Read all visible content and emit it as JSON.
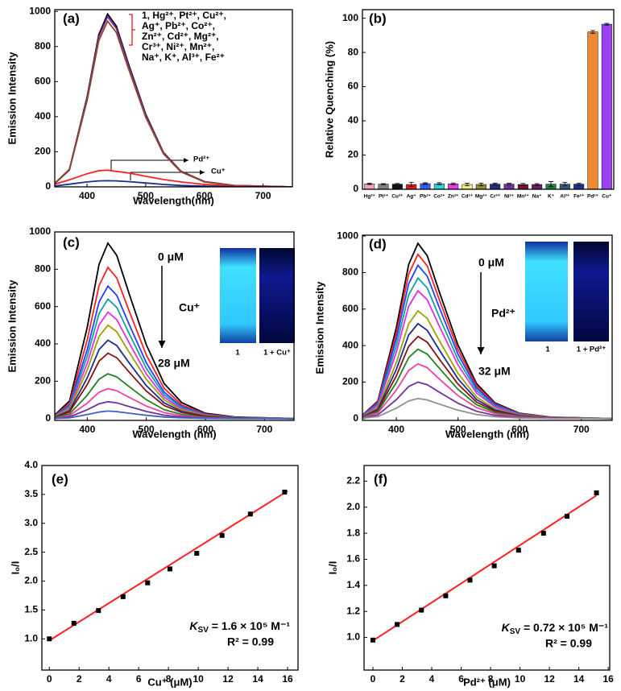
{
  "chart_data": [
    {
      "type": "line",
      "panel": "(a)",
      "xlabel": "Wavelength(nm)",
      "ylabel": "Emission Intensity",
      "legend_lines": [
        "1, Hg²⁺, Pt²⁺, Cu²⁺,",
        "Ag⁺, Pb²⁺, Co²⁺,",
        "Zn²⁺, Cd²⁺, Mg²⁺,",
        "Cr³⁺, Ni²⁺, Mn²⁺,",
        "Na⁺, K⁺, Al³⁺, Fe²⁺"
      ],
      "x": [
        345,
        370,
        400,
        420,
        435,
        450,
        470,
        500,
        530,
        560,
        600,
        650,
        750
      ],
      "xlim": [
        345,
        750
      ],
      "xticks": [
        400,
        500,
        600,
        700
      ],
      "ylim": [
        0,
        1010
      ],
      "yticks": [
        0,
        200,
        400,
        600,
        800,
        1000
      ],
      "series": [
        {
          "color": "#000000",
          "values": [
            20,
            99,
            512,
            867,
            985,
            916,
            709,
            414,
            197,
            89,
            30,
            8,
            0
          ]
        },
        {
          "color": "#7b2a9e",
          "values": [
            19,
            97,
            504,
            854,
            970,
            902,
            698,
            407,
            194,
            87,
            29,
            8,
            0
          ]
        },
        {
          "color": "#8b4a2a",
          "values": [
            19,
            95,
            491,
            832,
            945,
            879,
            680,
            397,
            189,
            85,
            28,
            8,
            0
          ]
        },
        {
          "name": "Pd²⁺",
          "color": "#ff2020",
          "values": [
            15,
            40,
            75,
            92,
            95,
            88,
            80,
            60,
            42,
            28,
            14,
            5,
            0
          ]
        },
        {
          "name": "Cu⁺",
          "color": "#1a2f8f",
          "values": [
            5,
            15,
            28,
            34,
            35,
            34,
            30,
            22,
            14,
            8,
            4,
            1,
            0
          ]
        }
      ]
    },
    {
      "type": "bar",
      "panel": "(b)",
      "ylabel": "Relative Quenching (%)",
      "categories": [
        "Hg²⁺",
        "Pt²⁺",
        "Cu²⁺",
        "Ag⁺",
        "Pb²⁺",
        "Co²⁺",
        "Zn²⁺",
        "Cd²⁺",
        "Mg²⁺",
        "Cr³⁺",
        "Ni²⁺",
        "Mn²⁺",
        "Na⁺",
        "K⁺",
        "Al³⁺",
        "Fe²⁺",
        "Pd²⁺",
        "Cu⁺"
      ],
      "values": [
        3.2,
        3.0,
        3.0,
        2.8,
        3.3,
        3.2,
        3.2,
        2.8,
        2.8,
        3.0,
        3.0,
        2.8,
        2.8,
        3.0,
        3.0,
        3.0,
        92,
        96.5
      ],
      "errors": [
        0.4,
        0.3,
        0.4,
        1.2,
        0.5,
        0.6,
        0.5,
        0.8,
        0.8,
        0.5,
        0.5,
        0.6,
        0.5,
        1.5,
        1.0,
        0.6,
        0.8,
        0.5
      ],
      "colors": [
        "#f4a0c0",
        "#808080",
        "#111111",
        "#e02020",
        "#3060ff",
        "#30d0e0",
        "#e040e0",
        "#f0f080",
        "#909030",
        "#203080",
        "#7030a0",
        "#801030",
        "#6a2060",
        "#208040",
        "#306080",
        "#203090",
        "#f08a30",
        "#9b40f0"
      ],
      "ylim": [
        0,
        105
      ],
      "yticks": [
        0,
        20,
        40,
        60,
        80,
        100
      ]
    },
    {
      "type": "line",
      "panel": "(c)",
      "xlabel": "Wavelength (nm)",
      "ylabel": "Emission Intensity",
      "start_label": "0 μM",
      "analyte": "Cu⁺",
      "end_label": "28 μM",
      "inset_labels": [
        "1",
        "1 + Cu⁺"
      ],
      "x": [
        345,
        370,
        400,
        420,
        435,
        450,
        470,
        500,
        530,
        560,
        600,
        650,
        750
      ],
      "xlim": [
        345,
        750
      ],
      "xticks": [
        400,
        500,
        600,
        700
      ],
      "ylim": [
        -10,
        1000
      ],
      "yticks": [
        0,
        200,
        400,
        600,
        800,
        1000
      ],
      "series": [
        {
          "color": "#000000",
          "values": [
            19,
            94,
            489,
            827,
            940,
            874,
            677,
            395,
            188,
            85,
            28,
            8,
            0
          ]
        },
        {
          "color": "#ff2020",
          "values": [
            16,
            81,
            421,
            713,
            810,
            753,
            583,
            340,
            162,
            73,
            24,
            6,
            0
          ]
        },
        {
          "color": "#2040ff",
          "values": [
            14,
            71,
            369,
            625,
            710,
            660,
            511,
            298,
            142,
            64,
            21,
            6,
            0
          ]
        },
        {
          "color": "#10a0a0",
          "values": [
            13,
            64,
            333,
            563,
            640,
            595,
            461,
            269,
            128,
            58,
            19,
            5,
            0
          ]
        },
        {
          "color": "#e030e0",
          "values": [
            11,
            57,
            296,
            502,
            570,
            530,
            410,
            239,
            114,
            51,
            17,
            5,
            0
          ]
        },
        {
          "color": "#a0a000",
          "values": [
            10,
            50,
            260,
            440,
            500,
            465,
            360,
            210,
            100,
            45,
            15,
            4,
            0
          ]
        },
        {
          "color": "#1a2f8f",
          "values": [
            8,
            42,
            218,
            370,
            420,
            391,
            302,
            176,
            84,
            38,
            13,
            3,
            0
          ]
        },
        {
          "color": "#8b1010",
          "values": [
            7,
            35,
            182,
            308,
            350,
            326,
            252,
            147,
            70,
            32,
            11,
            3,
            0
          ]
        },
        {
          "color": "#208020",
          "values": [
            5,
            24,
            125,
            211,
            240,
            223,
            173,
            101,
            48,
            22,
            7,
            2,
            0
          ]
        },
        {
          "color": "#f040a0",
          "values": [
            3,
            16,
            83,
            141,
            160,
            149,
            115,
            67,
            32,
            14,
            5,
            1,
            0
          ]
        },
        {
          "color": "#7030a0",
          "values": [
            2,
            9,
            47,
            79,
            90,
            84,
            65,
            38,
            18,
            8,
            3,
            1,
            0
          ]
        },
        {
          "color": "#4060c0",
          "values": [
            1,
            4,
            21,
            35,
            40,
            37,
            29,
            17,
            8,
            4,
            1,
            0,
            0
          ]
        }
      ]
    },
    {
      "type": "line",
      "panel": "(d)",
      "xlabel": "Wavelength (nm)",
      "ylabel": "Emission Intensity",
      "start_label": "0 μM",
      "analyte": "Pd²⁺",
      "end_label": "32 μM",
      "inset_labels": [
        "1",
        "1 + Pd²⁺"
      ],
      "x": [
        345,
        370,
        400,
        420,
        435,
        450,
        470,
        500,
        530,
        560,
        600,
        650,
        750
      ],
      "xlim": [
        345,
        750
      ],
      "xticks": [
        400,
        500,
        600,
        700
      ],
      "ylim": [
        -10,
        1005
      ],
      "yticks": [
        0,
        200,
        400,
        600,
        800,
        1000
      ],
      "series": [
        {
          "color": "#000000",
          "values": [
            19,
            96,
            499,
            845,
            960,
            893,
            691,
            403,
            192,
            86,
            29,
            8,
            0
          ]
        },
        {
          "color": "#ff2020",
          "values": [
            18,
            90,
            468,
            792,
            900,
            837,
            648,
            378,
            180,
            81,
            27,
            7,
            0
          ]
        },
        {
          "color": "#2040ff",
          "values": [
            17,
            84,
            437,
            739,
            840,
            781,
            605,
            353,
            168,
            76,
            25,
            7,
            0
          ]
        },
        {
          "color": "#10a0a0",
          "values": [
            15,
            77,
            400,
            678,
            770,
            716,
            554,
            323,
            154,
            69,
            23,
            6,
            0
          ]
        },
        {
          "color": "#e030e0",
          "values": [
            14,
            70,
            364,
            616,
            700,
            651,
            504,
            294,
            140,
            63,
            21,
            6,
            0
          ]
        },
        {
          "color": "#a0a000",
          "values": [
            12,
            59,
            307,
            519,
            590,
            549,
            425,
            248,
            118,
            53,
            18,
            5,
            0
          ]
        },
        {
          "color": "#1a2f8f",
          "values": [
            10,
            52,
            270,
            458,
            520,
            484,
            374,
            218,
            104,
            47,
            16,
            4,
            0
          ]
        },
        {
          "color": "#8b1010",
          "values": [
            9,
            45,
            234,
            396,
            450,
            419,
            324,
            189,
            90,
            41,
            14,
            4,
            0
          ]
        },
        {
          "color": "#208020",
          "values": [
            8,
            38,
            198,
            334,
            380,
            353,
            274,
            160,
            76,
            34,
            11,
            3,
            0
          ]
        },
        {
          "color": "#f040a0",
          "values": [
            6,
            30,
            156,
            264,
            300,
            279,
            216,
            126,
            60,
            27,
            9,
            2,
            0
          ]
        },
        {
          "color": "#7030a0",
          "values": [
            4,
            20,
            104,
            176,
            200,
            186,
            144,
            84,
            40,
            18,
            6,
            2,
            0
          ]
        },
        {
          "color": "#909090",
          "values": [
            2,
            11,
            57,
            97,
            110,
            102,
            79,
            46,
            22,
            10,
            3,
            1,
            0
          ]
        }
      ]
    },
    {
      "type": "scatter",
      "panel": "(e)",
      "xlabel": "Cu⁺ (μM)",
      "ylabel": "I₀/I",
      "ksv": {
        "symbol": "K",
        "subscript": "SV",
        "text": " = 1.6 × 10⁵ M⁻¹"
      },
      "r2": "R² = 0.99",
      "x": [
        0,
        1.65,
        3.3,
        4.95,
        6.6,
        8.1,
        9.9,
        11.6,
        13.5,
        15.8
      ],
      "values": [
        1.0,
        1.27,
        1.49,
        1.73,
        1.97,
        2.21,
        2.48,
        2.79,
        3.16,
        3.54
      ],
      "color": "#000000",
      "fit": {
        "x": [
          0,
          16
        ],
        "y": [
          0.97,
          3.56
        ],
        "color": "#ff2020"
      },
      "xlim": [
        -0.5,
        16.7
      ],
      "xticks": [
        0,
        2,
        4,
        6,
        8,
        10,
        12,
        14,
        16
      ],
      "ylim": [
        0.46,
        4.0
      ],
      "yticks": [
        {
          "value": 1,
          "label": "1.0"
        },
        1.5,
        {
          "value": 2,
          "label": "2.0"
        },
        2.5,
        {
          "value": 3,
          "label": "3.0"
        },
        3.5,
        {
          "value": 4,
          "label": "4.0"
        }
      ]
    },
    {
      "type": "scatter",
      "panel": "(f)",
      "xlabel": "Pd²⁺ (μM)",
      "ylabel": "I₀/I",
      "ksv": {
        "symbol": "K",
        "subscript": "SV",
        "text": " = 0.72 × 10⁵ M⁻¹"
      },
      "r2": "R² = 0.99",
      "x": [
        0,
        1.65,
        3.3,
        4.95,
        6.6,
        8.25,
        9.9,
        11.6,
        13.2,
        15.2
      ],
      "values": [
        0.98,
        1.1,
        1.21,
        1.32,
        1.44,
        1.55,
        1.67,
        1.8,
        1.93,
        2.11
      ],
      "color": "#000000",
      "fit": {
        "x": [
          0,
          15.2
        ],
        "y": [
          0.975,
          2.09
        ],
        "color": "#ff2020"
      },
      "xlim": [
        -0.6,
        16.1
      ],
      "xticks": [
        0,
        2,
        4,
        6,
        8,
        10,
        12,
        14,
        16
      ],
      "ylim": [
        0.75,
        2.32
      ],
      "yticks": [
        {
          "value": 1,
          "label": "1.0"
        },
        1.2,
        1.4,
        1.6,
        1.8,
        {
          "value": 2,
          "label": "2.0"
        },
        2.2
      ]
    }
  ]
}
